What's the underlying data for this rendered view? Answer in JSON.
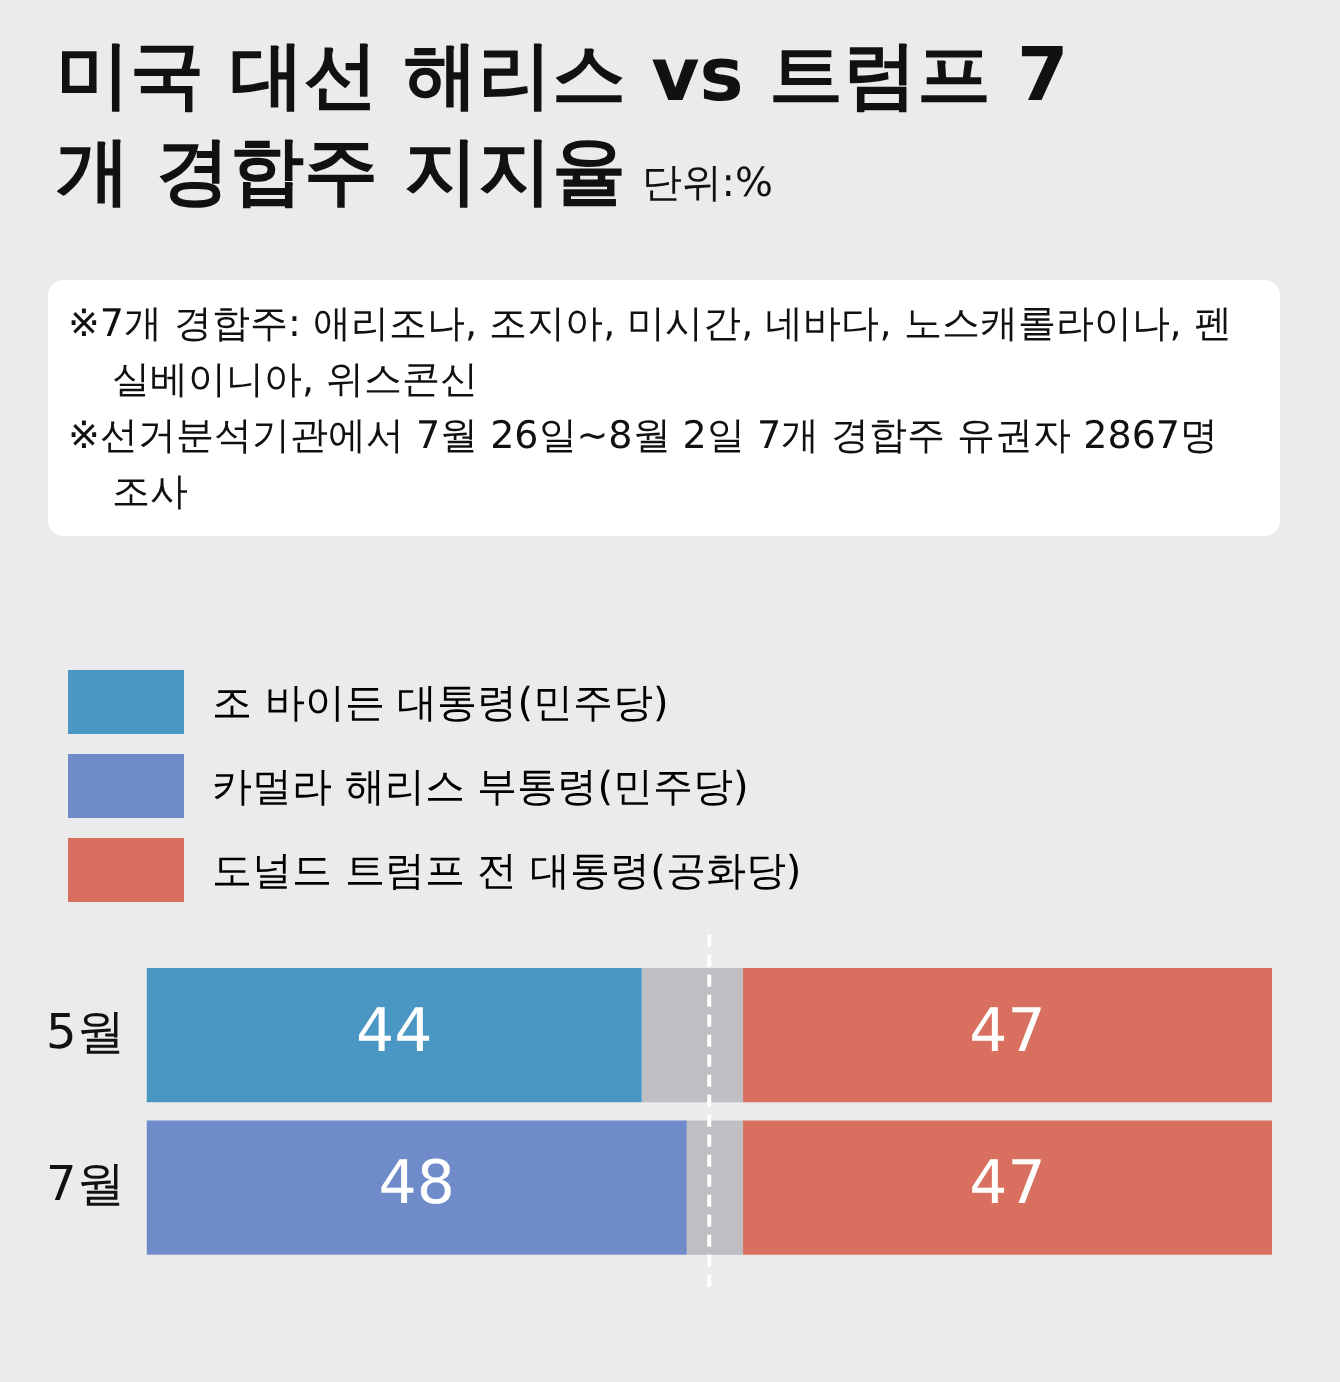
{
  "chart_data": {
    "type": "bar",
    "orientation": "horizontal",
    "stacked": true,
    "title": "미국 대선 해리스 vs 트럼프 7개 경합주 지지율",
    "subtitle": "단위:%",
    "annotations": [
      "※7개 경합주: 애리조나, 조지아, 미시간, 네바다, 노스캐롤라이나, 펜실베이니아, 위스콘신",
      "※선거분석기관에서 7월 26일~8월 2일 7개 경합주 유권자 2867명 조사"
    ],
    "categories": [
      "5월",
      "7월"
    ],
    "series": [
      {
        "name": "조 바이든 대통령(민주당)",
        "color": "#4a97c3",
        "values": [
          44,
          null
        ],
        "value_labels": [
          "44",
          null
        ]
      },
      {
        "name": "카멀라 해리스 부통령(민주당)",
        "color": "#6f8bca",
        "values": [
          null,
          48
        ],
        "value_labels": [
          null,
          "48"
        ]
      },
      {
        "color": "#bfbfc3",
        "values": [
          9,
          5
        ],
        "value_labels": [
          null,
          null
        ]
      },
      {
        "name": "도널드 트럼프 전 대통령(공화당)",
        "color": "#d9705f",
        "values": [
          47,
          47
        ],
        "value_labels": [
          "47",
          "47"
        ]
      }
    ],
    "xlim": [
      0,
      100
    ],
    "tick_labels": "y",
    "legend": "top",
    "ref_lines": [
      {
        "axis": "x",
        "value": 50,
        "color": "#ffffff",
        "line_style": "dashed"
      }
    ]
  }
}
